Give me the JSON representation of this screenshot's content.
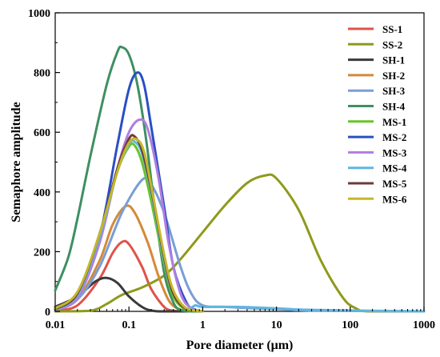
{
  "chart_data": {
    "type": "line",
    "xlabel": "Pore diameter (μm)",
    "ylabel": "Semaphore amplitude",
    "xscale": "log",
    "xlim": [
      0.01,
      1000
    ],
    "ylim": [
      0,
      1000
    ],
    "x_ticks": [
      0.01,
      0.1,
      1,
      10,
      100,
      1000
    ],
    "x_tick_labels": [
      "0.01",
      "0.1",
      "1",
      "10",
      "100",
      "1000"
    ],
    "y_ticks": [
      0,
      200,
      400,
      600,
      800,
      1000
    ],
    "y_tick_labels": [
      "0",
      "200",
      "400",
      "600",
      "800",
      "1000"
    ],
    "grid": false,
    "legend_position": "top-right",
    "series": [
      {
        "name": "SS-1",
        "color": "#e0524a",
        "points": [
          [
            0.01,
            2
          ],
          [
            0.02,
            20
          ],
          [
            0.04,
            110
          ],
          [
            0.06,
            195
          ],
          [
            0.08,
            232
          ],
          [
            0.1,
            225
          ],
          [
            0.15,
            150
          ],
          [
            0.2,
            75
          ],
          [
            0.3,
            15
          ],
          [
            0.4,
            2
          ],
          [
            0.6,
            0
          ],
          [
            1,
            0
          ]
        ]
      },
      {
        "name": "SS-2",
        "color": "#8f9a1a",
        "points": [
          [
            0.01,
            0
          ],
          [
            0.03,
            2
          ],
          [
            0.05,
            25
          ],
          [
            0.08,
            55
          ],
          [
            0.15,
            80
          ],
          [
            0.3,
            120
          ],
          [
            0.5,
            175
          ],
          [
            1,
            265
          ],
          [
            2,
            355
          ],
          [
            4,
            430
          ],
          [
            7,
            455
          ],
          [
            10,
            445
          ],
          [
            20,
            340
          ],
          [
            40,
            170
          ],
          [
            80,
            45
          ],
          [
            120,
            10
          ],
          [
            180,
            0
          ],
          [
            1000,
            0
          ]
        ]
      },
      {
        "name": "SH-1",
        "color": "#3a3a3a",
        "points": [
          [
            0.01,
            15
          ],
          [
            0.02,
            50
          ],
          [
            0.035,
            100
          ],
          [
            0.05,
            112
          ],
          [
            0.07,
            95
          ],
          [
            0.1,
            50
          ],
          [
            0.15,
            15
          ],
          [
            0.2,
            3
          ],
          [
            0.3,
            0
          ],
          [
            1,
            0
          ]
        ]
      },
      {
        "name": "SH-2",
        "color": "#d5893a",
        "points": [
          [
            0.01,
            5
          ],
          [
            0.02,
            40
          ],
          [
            0.04,
            170
          ],
          [
            0.06,
            290
          ],
          [
            0.09,
            352
          ],
          [
            0.12,
            330
          ],
          [
            0.18,
            230
          ],
          [
            0.25,
            120
          ],
          [
            0.35,
            35
          ],
          [
            0.5,
            5
          ],
          [
            0.7,
            0
          ],
          [
            1,
            0
          ]
        ]
      },
      {
        "name": "SH-3",
        "color": "#7a9dd6",
        "points": [
          [
            0.01,
            10
          ],
          [
            0.02,
            40
          ],
          [
            0.04,
            150
          ],
          [
            0.08,
            330
          ],
          [
            0.15,
            440
          ],
          [
            0.2,
            425
          ],
          [
            0.3,
            330
          ],
          [
            0.5,
            150
          ],
          [
            0.7,
            60
          ],
          [
            1,
            20
          ],
          [
            2,
            15
          ],
          [
            5,
            10
          ],
          [
            10,
            8
          ],
          [
            20,
            4
          ],
          [
            50,
            2
          ],
          [
            1000,
            0
          ]
        ]
      },
      {
        "name": "SH-4",
        "color": "#3f8f62",
        "points": [
          [
            0.01,
            70
          ],
          [
            0.015,
            180
          ],
          [
            0.02,
            310
          ],
          [
            0.03,
            520
          ],
          [
            0.05,
            760
          ],
          [
            0.07,
            870
          ],
          [
            0.08,
            885
          ],
          [
            0.1,
            860
          ],
          [
            0.13,
            760
          ],
          [
            0.17,
            580
          ],
          [
            0.22,
            360
          ],
          [
            0.3,
            130
          ],
          [
            0.4,
            30
          ],
          [
            0.5,
            5
          ],
          [
            0.7,
            0
          ],
          [
            1,
            0
          ]
        ]
      },
      {
        "name": "MS-1",
        "color": "#66c42a",
        "points": [
          [
            0.01,
            8
          ],
          [
            0.02,
            60
          ],
          [
            0.04,
            260
          ],
          [
            0.07,
            470
          ],
          [
            0.1,
            552
          ],
          [
            0.12,
            555
          ],
          [
            0.15,
            500
          ],
          [
            0.2,
            370
          ],
          [
            0.3,
            160
          ],
          [
            0.4,
            50
          ],
          [
            0.6,
            5
          ],
          [
            1,
            0
          ]
        ]
      },
      {
        "name": "MS-2",
        "color": "#2a4fc4",
        "points": [
          [
            0.01,
            5
          ],
          [
            0.02,
            50
          ],
          [
            0.04,
            250
          ],
          [
            0.07,
            560
          ],
          [
            0.1,
            745
          ],
          [
            0.13,
            800
          ],
          [
            0.16,
            760
          ],
          [
            0.2,
            620
          ],
          [
            0.3,
            350
          ],
          [
            0.4,
            150
          ],
          [
            0.6,
            30
          ],
          [
            0.8,
            5
          ],
          [
            1,
            0
          ]
        ]
      },
      {
        "name": "MS-3",
        "color": "#b07ee0",
        "points": [
          [
            0.01,
            5
          ],
          [
            0.02,
            45
          ],
          [
            0.04,
            230
          ],
          [
            0.07,
            480
          ],
          [
            0.1,
            600
          ],
          [
            0.14,
            642
          ],
          [
            0.18,
            610
          ],
          [
            0.25,
            450
          ],
          [
            0.35,
            220
          ],
          [
            0.5,
            60
          ],
          [
            0.7,
            10
          ],
          [
            1,
            0
          ]
        ]
      },
      {
        "name": "MS-4",
        "color": "#5fb6e0",
        "points": [
          [
            0.01,
            6
          ],
          [
            0.02,
            55
          ],
          [
            0.04,
            250
          ],
          [
            0.07,
            470
          ],
          [
            0.1,
            560
          ],
          [
            0.12,
            568
          ],
          [
            0.15,
            530
          ],
          [
            0.2,
            400
          ],
          [
            0.3,
            170
          ],
          [
            0.4,
            60
          ],
          [
            0.6,
            10
          ],
          [
            0.8,
            20
          ],
          [
            1,
            15
          ],
          [
            3,
            15
          ],
          [
            10,
            10
          ],
          [
            30,
            5
          ],
          [
            1000,
            0
          ]
        ]
      },
      {
        "name": "MS-5",
        "color": "#6b3a3a",
        "points": [
          [
            0.01,
            8
          ],
          [
            0.02,
            60
          ],
          [
            0.04,
            260
          ],
          [
            0.07,
            480
          ],
          [
            0.1,
            578
          ],
          [
            0.12,
            585
          ],
          [
            0.15,
            540
          ],
          [
            0.2,
            410
          ],
          [
            0.3,
            180
          ],
          [
            0.4,
            60
          ],
          [
            0.6,
            8
          ],
          [
            1,
            0
          ]
        ]
      },
      {
        "name": "MS-6",
        "color": "#c4b82a",
        "points": [
          [
            0.01,
            10
          ],
          [
            0.02,
            65
          ],
          [
            0.04,
            260
          ],
          [
            0.07,
            470
          ],
          [
            0.1,
            565
          ],
          [
            0.13,
            575
          ],
          [
            0.16,
            535
          ],
          [
            0.2,
            420
          ],
          [
            0.3,
            190
          ],
          [
            0.4,
            70
          ],
          [
            0.6,
            10
          ],
          [
            1,
            0
          ]
        ]
      }
    ]
  }
}
